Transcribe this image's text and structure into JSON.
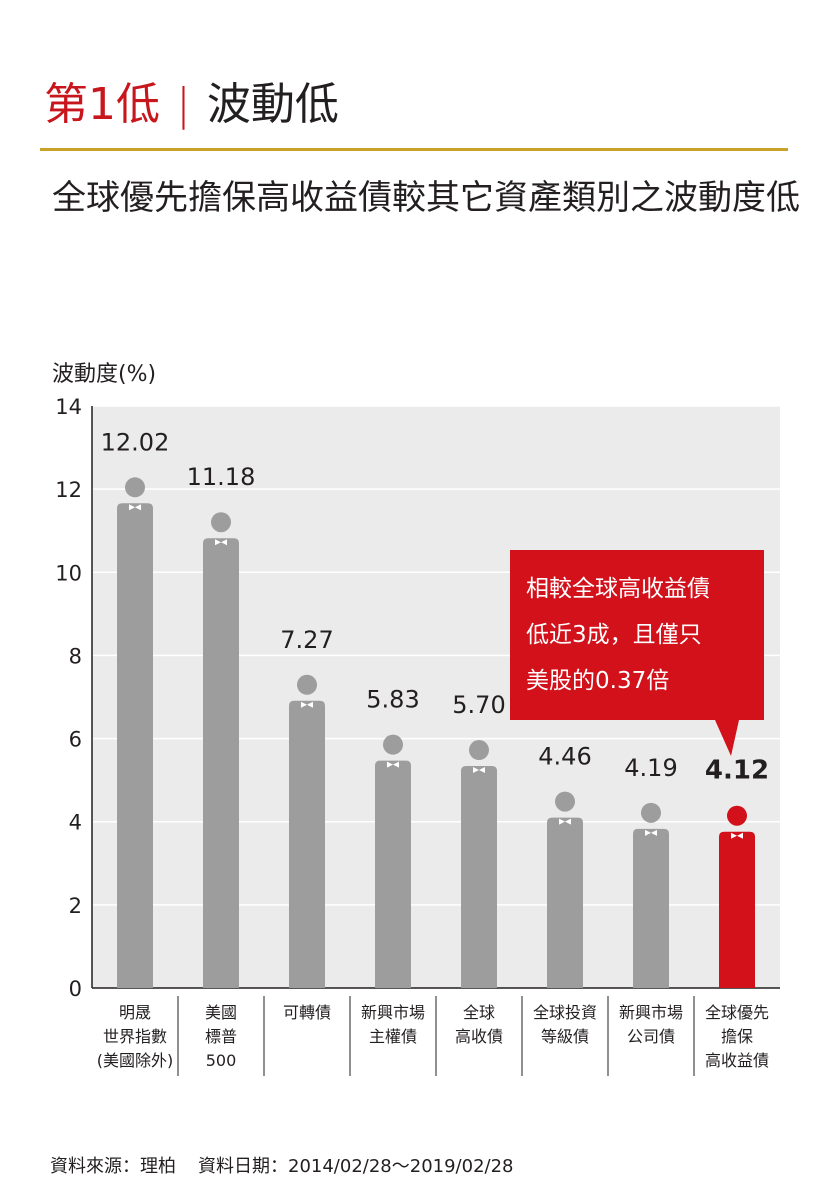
{
  "header": {
    "rank": "第1低",
    "separator": "|",
    "name": "波動低"
  },
  "subtitle": "全球優先擔保高收益債較其它資產類別之波動度低",
  "callout": {
    "lines": [
      "相較全球高收益債",
      "低近3成，且僅只",
      "美股的0.37倍"
    ]
  },
  "source": {
    "origin": "資料來源：理柏",
    "date": "資料日期：2014/02/28～2019/02/28"
  },
  "colors": {
    "bar": "#9d9d9d",
    "highlight": "#d2111b",
    "plot_bg": "#ebebeb",
    "accent_rule": "#c9a227"
  },
  "chart_data": {
    "type": "bar",
    "ylabel": "波動度(%)",
    "ylim": [
      0,
      14
    ],
    "yticks": [
      0,
      2,
      4,
      6,
      8,
      10,
      12,
      14
    ],
    "grid": true,
    "categories": [
      [
        "明晟",
        "世界指數",
        "(美國除外)"
      ],
      [
        "美國",
        "標普",
        "500"
      ],
      [
        "可轉債"
      ],
      [
        "新興市場",
        "主權債"
      ],
      [
        "全球",
        "高收債"
      ],
      [
        "全球投資",
        "等級債"
      ],
      [
        "新興市場",
        "公司債"
      ],
      [
        "全球優先",
        "擔保",
        "高收益債"
      ]
    ],
    "values": [
      12.02,
      11.18,
      7.27,
      5.83,
      5.7,
      4.46,
      4.19,
      4.12
    ],
    "value_labels": [
      "12.02",
      "11.18",
      "7.27",
      "5.83",
      "5.70",
      "4.46",
      "4.19",
      "4.12"
    ],
    "highlight_index": 7
  }
}
